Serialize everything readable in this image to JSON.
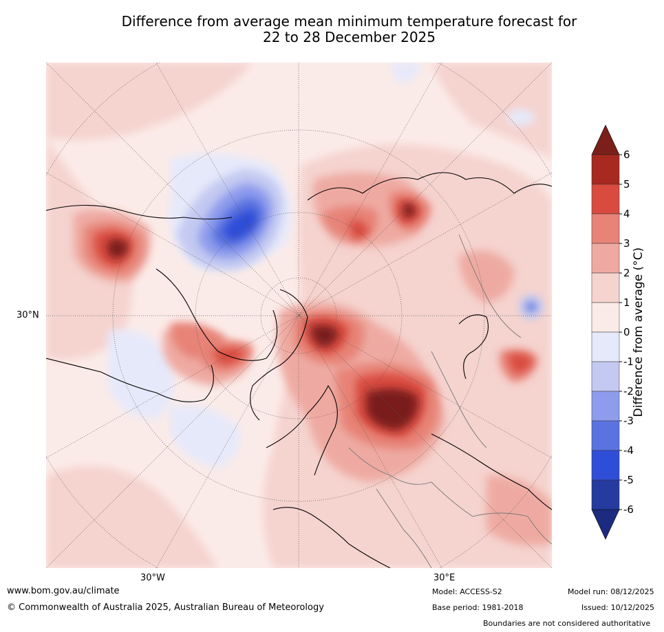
{
  "title_line1": "Difference from average mean minimum temperature forecast for",
  "title_line2": "22 to 28 December 2025",
  "map": {
    "projection": "north polar stereographic",
    "lat_label": "30°N",
    "lon_labels": [
      "30°W",
      "30°E"
    ]
  },
  "colorbar": {
    "title": "Difference from average (°C)",
    "ticks": [
      "6",
      "5",
      "4",
      "3",
      "2",
      "1",
      "0",
      "-1",
      "-2",
      "-3",
      "-4",
      "-5",
      "-6"
    ],
    "colors_top_to_bottom": [
      "#7a1f1a",
      "#a8291f",
      "#d94b3f",
      "#e78377",
      "#eeaaa2",
      "#f5d3cf",
      "#fbebe8",
      "#e6e9fa",
      "#c3c9f1",
      "#8e9ced",
      "#5a73e0",
      "#2f4ed8",
      "#253ba0",
      "#1c2b80"
    ]
  },
  "footer": {
    "website": "www.bom.gov.au/climate",
    "copyright": "© Commonwealth of Australia 2025, Australian Bureau of Meteorology",
    "model": "Model: ACCESS-S2",
    "base_period": "Base period: 1981-2018",
    "model_run": "Model run: 08/12/2025",
    "issued": "Issued: 10/12/2025",
    "boundaries": "Boundaries are not considered authoritative"
  }
}
